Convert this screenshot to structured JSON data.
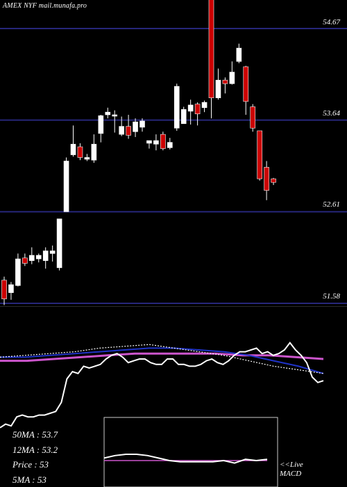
{
  "ticker": "AMEX  NYF mail.munafa.pro",
  "chart_data": [
    {
      "type": "candlestick",
      "title": "",
      "xlabel": "",
      "ylabel": "",
      "ylim": [
        51.58,
        55.05
      ],
      "grid": "horizontal lines at tick values",
      "yticks": [
        "54.67",
        "53.64",
        "52.61",
        "51.58"
      ],
      "candles": [
        {
          "open": 51.84,
          "close": 51.63,
          "high": 51.88,
          "low": 51.56,
          "dir": "down"
        },
        {
          "open": 51.7,
          "close": 51.79,
          "high": 51.82,
          "low": 51.62,
          "dir": "up"
        },
        {
          "open": 51.78,
          "close": 52.08,
          "high": 52.14,
          "low": 51.77,
          "dir": "up"
        },
        {
          "open": 52.09,
          "close": 52.03,
          "high": 52.14,
          "low": 52.0,
          "dir": "down"
        },
        {
          "open": 52.06,
          "close": 52.12,
          "high": 52.21,
          "low": 52.02,
          "dir": "up"
        },
        {
          "open": 52.08,
          "close": 52.12,
          "high": 52.14,
          "low": 52.04,
          "dir": "up"
        },
        {
          "open": 52.06,
          "close": 52.17,
          "high": 52.21,
          "low": 51.97,
          "dir": "up"
        },
        {
          "open": 52.14,
          "close": 52.17,
          "high": 52.23,
          "low": 52.05,
          "dir": "up"
        },
        {
          "open": 51.98,
          "close": 52.53,
          "high": 52.53,
          "low": 51.95,
          "dir": "up"
        },
        {
          "open": 52.61,
          "close": 53.18,
          "high": 53.22,
          "low": 52.61,
          "dir": "up"
        },
        {
          "open": 53.25,
          "close": 53.37,
          "high": 53.58,
          "low": 53.23,
          "dir": "up"
        },
        {
          "open": 53.34,
          "close": 53.22,
          "high": 53.38,
          "low": 53.19,
          "dir": "down"
        },
        {
          "open": 53.2,
          "close": 53.22,
          "high": 53.26,
          "low": 53.18,
          "dir": "up"
        },
        {
          "open": 53.19,
          "close": 53.37,
          "high": 53.48,
          "low": 53.16,
          "dir": "up"
        },
        {
          "open": 53.49,
          "close": 53.69,
          "high": 53.7,
          "low": 53.39,
          "dir": "up"
        },
        {
          "open": 53.7,
          "close": 53.73,
          "high": 53.78,
          "low": 53.66,
          "dir": "up"
        },
        {
          "open": 53.7,
          "close": 53.7,
          "high": 53.75,
          "low": 53.5,
          "dir": "flat"
        },
        {
          "open": 53.48,
          "close": 53.57,
          "high": 53.68,
          "low": 53.46,
          "dir": "up"
        },
        {
          "open": 53.57,
          "close": 53.47,
          "high": 53.7,
          "low": 53.43,
          "dir": "down"
        },
        {
          "open": 53.51,
          "close": 53.62,
          "high": 53.66,
          "low": 53.45,
          "dir": "up"
        },
        {
          "open": 53.56,
          "close": 53.63,
          "high": 53.66,
          "low": 53.51,
          "dir": "up"
        },
        {
          "open": 53.38,
          "close": 53.41,
          "high": 53.41,
          "low": 53.32,
          "dir": "up"
        },
        {
          "open": 53.37,
          "close": 53.41,
          "high": 53.48,
          "low": 53.3,
          "dir": "up"
        },
        {
          "open": 53.48,
          "close": 53.32,
          "high": 53.51,
          "low": 53.3,
          "dir": "down"
        },
        {
          "open": 53.33,
          "close": 53.39,
          "high": 53.44,
          "low": 53.31,
          "dir": "up"
        },
        {
          "open": 53.55,
          "close": 54.02,
          "high": 54.05,
          "low": 53.52,
          "dir": "up"
        },
        {
          "open": 53.6,
          "close": 53.76,
          "high": 53.79,
          "low": 53.6,
          "dir": "up"
        },
        {
          "open": 53.74,
          "close": 53.81,
          "high": 53.87,
          "low": 53.59,
          "dir": "up"
        },
        {
          "open": 53.82,
          "close": 53.71,
          "high": 53.84,
          "low": 53.58,
          "dir": "down"
        },
        {
          "open": 53.78,
          "close": 53.84,
          "high": 53.86,
          "low": 53.73,
          "dir": "up"
        },
        {
          "open": 55.03,
          "close": 53.89,
          "high": 55.05,
          "low": 53.66,
          "dir": "down"
        },
        {
          "open": 53.89,
          "close": 54.09,
          "high": 54.22,
          "low": 53.87,
          "dir": "up"
        },
        {
          "open": 54.09,
          "close": 54.05,
          "high": 54.12,
          "low": 53.94,
          "dir": "down"
        },
        {
          "open": 54.05,
          "close": 54.18,
          "high": 54.3,
          "low": 54.04,
          "dir": "up"
        },
        {
          "open": 54.3,
          "close": 54.45,
          "high": 54.5,
          "low": 54.28,
          "dir": "up"
        },
        {
          "open": 54.24,
          "close": 53.85,
          "high": 54.25,
          "low": 53.7,
          "dir": "down"
        },
        {
          "open": 53.79,
          "close": 53.55,
          "high": 53.82,
          "low": 53.51,
          "dir": "down"
        },
        {
          "open": 53.52,
          "close": 52.98,
          "high": 53.52,
          "low": 52.96,
          "dir": "down"
        },
        {
          "open": 53.11,
          "close": 52.85,
          "high": 53.18,
          "low": 52.74,
          "dir": "down"
        },
        {
          "open": 52.98,
          "close": 52.94,
          "high": 52.99,
          "low": 52.91,
          "dir": "down"
        }
      ]
    },
    {
      "type": "line",
      "title": "",
      "xlabel": "",
      "ylabel": "",
      "series": [
        {
          "name": "",
          "color": "#ffffff",
          "style": "solid",
          "values": [
            -2.4,
            -2.2,
            -2.3,
            -1.8,
            -1.7,
            -1.8,
            -1.8,
            -1.7,
            -1.7,
            -1.6,
            -1.5,
            -1.0,
            0.3,
            0.7,
            0.6,
            1.0,
            0.9,
            1.0,
            1.1,
            1.4,
            1.6,
            1.7,
            1.5,
            1.2,
            1.3,
            1.4,
            1.4,
            1.2,
            1.1,
            1.1,
            1.4,
            1.4,
            1.1,
            1.1,
            1.0,
            1.0,
            1.1,
            1.3,
            1.4,
            1.2,
            1.1,
            1.3,
            1.6,
            1.8,
            1.8,
            1.9,
            2.0,
            1.7,
            1.8,
            1.6,
            1.7,
            1.9,
            2.3,
            1.9,
            1.6,
            1.2,
            0.4,
            0.1,
            0.2
          ]
        },
        {
          "name": "",
          "color": "#ffffff",
          "style": "dotted",
          "values": [
            1.5,
            1.6,
            1.7,
            1.8,
            2.0,
            2.1,
            2.2,
            2.0,
            1.8,
            1.6,
            1.3,
            1.0,
            0.8,
            0.6
          ]
        },
        {
          "name": "",
          "color": "#1f33c8",
          "style": "solid",
          "values": [
            1.5,
            1.5,
            1.6,
            1.7,
            1.8,
            1.9,
            2.0,
            2.0,
            1.9,
            1.8,
            1.6,
            1.3,
            1.0,
            0.6
          ]
        },
        {
          "name": "",
          "color": "#cc55cc",
          "style": "solid",
          "values": [
            1.3,
            1.3,
            1.4,
            1.5,
            1.6,
            1.7,
            1.7,
            1.7,
            1.7,
            1.6,
            1.6,
            1.5,
            1.4
          ]
        }
      ]
    },
    {
      "type": "line",
      "title": "",
      "series": [
        {
          "name": "",
          "color": "#ffffff",
          "values": [
            0.7,
            0.9,
            1.0,
            1.0,
            0.9,
            0.7,
            0.5,
            0.4,
            0.4,
            0.4,
            0.4,
            0.5,
            0.3,
            0.6,
            0.5,
            0.6
          ]
        },
        {
          "name": "",
          "color": "#cc55cc",
          "values": [
            0.5,
            0.5,
            0.5,
            0.5,
            0.5,
            0.5,
            0.5,
            0.5,
            0.5,
            0.5,
            0.5,
            0.5,
            0.5,
            0.5,
            0.5,
            0.5
          ]
        }
      ]
    }
  ],
  "legend": {
    "ma50": "50MA : 53.7",
    "ma12": "12MA : 53.2",
    "price": "Price   : 53",
    "ma5": "5MA : 53"
  },
  "macd_caption": {
    "line1": "<<Live",
    "line2": "MACD"
  }
}
